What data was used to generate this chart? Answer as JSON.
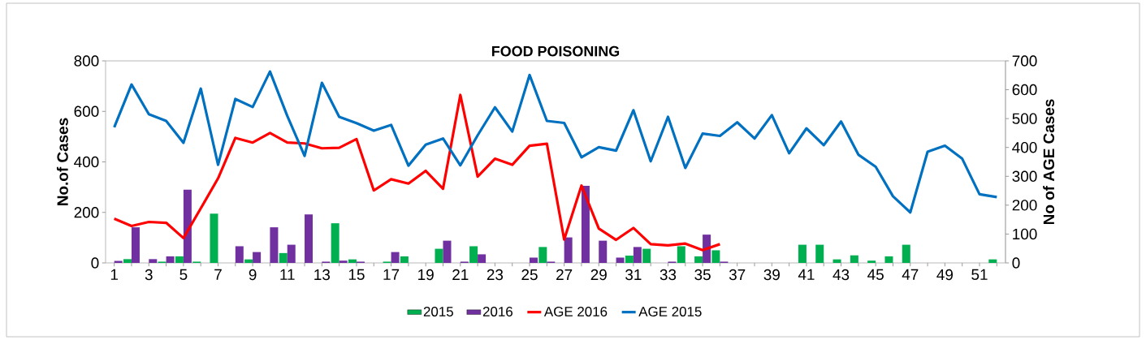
{
  "chart_data": {
    "type": "bar",
    "title": "FOOD POISONING",
    "ylabel": "No.of Cases",
    "y2label": "No of AGE Cases",
    "categories": [
      "1",
      null,
      "3",
      null,
      "5",
      null,
      "7",
      null,
      "9",
      null,
      "11",
      null,
      "13",
      null,
      "15",
      null,
      "17",
      null,
      "19",
      null,
      "21",
      null,
      "23",
      null,
      "25",
      null,
      "27",
      null,
      "29",
      null,
      "31",
      null,
      "33",
      null,
      "35",
      null,
      "37",
      null,
      "39",
      null,
      "41",
      null,
      "43",
      null,
      "45",
      null,
      "47",
      null,
      "49",
      null,
      "51",
      null
    ],
    "series": [
      {
        "name": "2015",
        "color": "#00b050",
        "values": [
          0,
          15,
          0,
          5,
          26,
          5,
          195,
          0,
          14,
          0,
          39,
          0,
          0,
          157,
          14,
          0,
          5,
          26,
          0,
          56,
          0,
          66,
          0,
          0,
          0,
          63,
          0,
          0,
          0,
          0,
          29,
          56,
          0,
          66,
          26,
          50,
          0,
          0,
          0,
          0,
          72,
          72,
          14,
          30,
          9,
          26,
          72,
          0,
          0,
          0,
          0,
          14
        ]
      },
      {
        "name": "2016",
        "color": "#7030a0",
        "values": [
          8,
          141,
          15,
          26,
          290,
          0,
          0,
          66,
          43,
          141,
          72,
          192,
          5,
          9,
          5,
          0,
          43,
          0,
          0,
          88,
          5,
          34,
          0,
          0,
          21,
          5,
          101,
          305,
          88,
          21,
          63,
          0,
          5,
          0,
          112,
          5,
          null,
          null,
          null,
          null,
          null,
          null,
          null,
          null,
          null,
          null,
          null,
          null,
          null,
          null,
          null,
          null
        ]
      },
      {
        "name": "AGE 2016",
        "type": "line",
        "axis": "y2",
        "color": "#ff0000",
        "values": [
          153,
          128,
          142,
          139,
          86,
          189,
          293,
          433,
          417,
          450,
          417,
          414,
          397,
          399,
          429,
          251,
          290,
          275,
          319,
          257,
          582,
          299,
          361,
          340,
          406,
          413,
          81,
          268,
          119,
          80,
          121,
          65,
          61,
          67,
          44,
          65,
          null,
          null,
          null,
          null,
          null,
          null,
          null,
          null,
          null,
          null,
          null,
          null,
          null,
          null,
          null,
          null
        ]
      },
      {
        "name": "AGE 2015",
        "type": "line",
        "axis": "y2",
        "color": "#0070c0",
        "values": [
          470,
          618,
          515,
          492,
          416,
          604,
          340,
          568,
          540,
          663,
          509,
          371,
          624,
          506,
          484,
          458,
          478,
          337,
          410,
          431,
          338,
          442,
          539,
          455,
          651,
          492,
          485,
          366,
          401,
          389,
          529,
          352,
          506,
          329,
          448,
          440,
          487,
          431,
          512,
          380,
          466,
          408,
          490,
          375,
          333,
          231,
          175,
          385,
          406,
          361,
          238,
          228
        ]
      }
    ],
    "ylim": [
      0,
      800
    ],
    "yticks": [
      0,
      200,
      400,
      600,
      800
    ],
    "y2lim": [
      0,
      700
    ],
    "y2ticks": [
      0,
      100,
      200,
      300,
      400,
      500,
      600,
      700
    ],
    "legend": "bottom",
    "marker": "none",
    "line_style": "solid"
  }
}
